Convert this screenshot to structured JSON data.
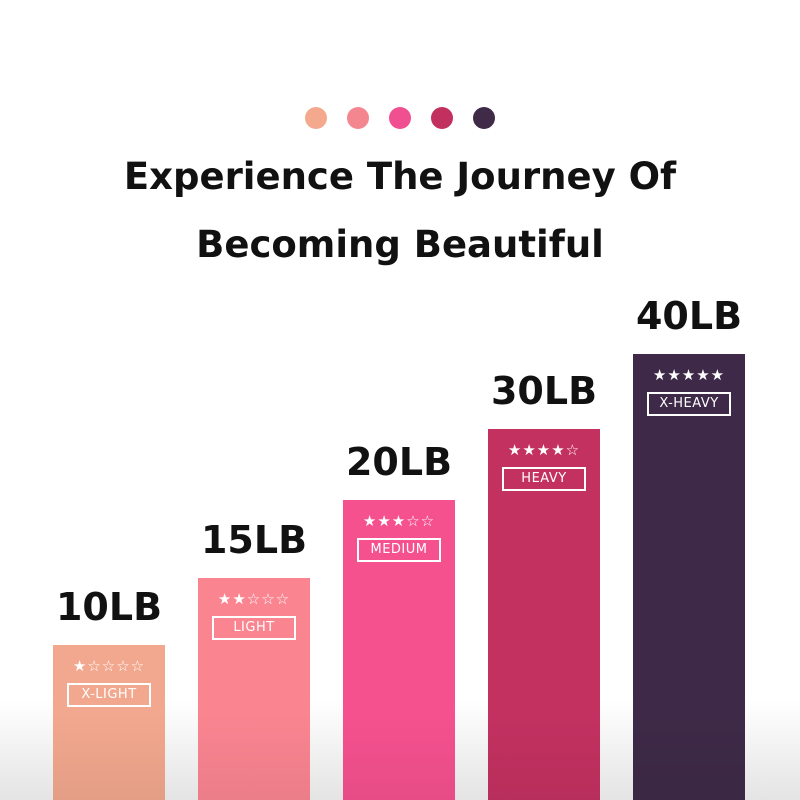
{
  "header": {
    "dot_colors": [
      "#f4a98f",
      "#f4868f",
      "#f0508f",
      "#c23060",
      "#3f2a48"
    ],
    "title_line1": "Experience The Journey Of",
    "title_line2": "Becoming Beautiful"
  },
  "chart_data": {
    "type": "bar",
    "categories": [
      "X-LIGHT",
      "LIGHT",
      "MEDIUM",
      "HEAVY",
      "X-HEAVY"
    ],
    "values": [
      10,
      15,
      20,
      30,
      40
    ],
    "value_labels": [
      "10LB",
      "15LB",
      "20LB",
      "30LB",
      "40LB"
    ],
    "stars": [
      1,
      2,
      3,
      4,
      5
    ],
    "stars_max": 5,
    "colors": [
      "#f2a88e",
      "#fa8591",
      "#f5518f",
      "#c33161",
      "#3e2a48"
    ]
  }
}
